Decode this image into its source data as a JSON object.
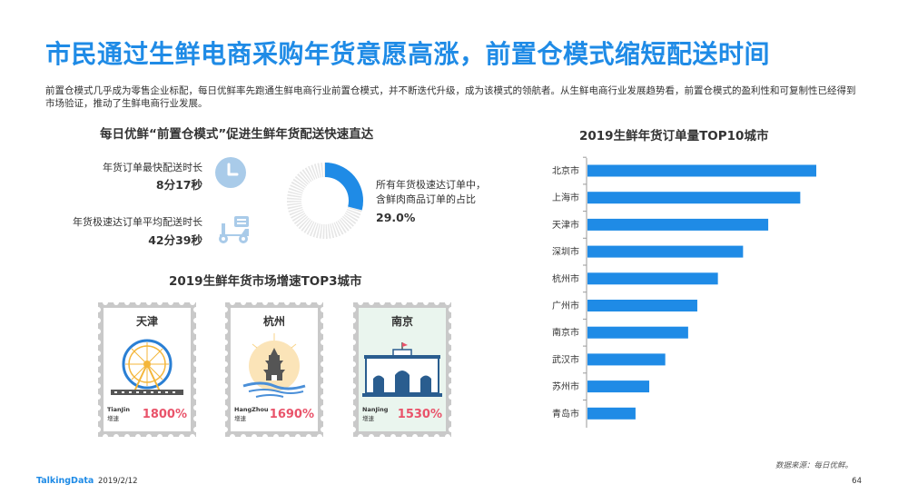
{
  "header": {
    "title": "市民通过生鲜电商采购年货意愿高涨，前置仓模式缩短配送时间",
    "intro": "前置仓模式几乎成为零售企业标配，每日优鲜率先跑通生鲜电商行业前置仓模式，并不断迭代升级，成为该模式的领航者。从生鲜电商行业发展趋势看，前置仓模式的盈利性和可复制性已经得到市场验证，推动了生鲜电商行业发展。"
  },
  "delivery": {
    "title": "每日优鲜“前置仓模式”促进生鲜年货配送快速直达",
    "fastest_label": "年货订单最快配送时长",
    "fastest_value": "8分17秒",
    "average_label": "年货极速达订单平均配送时长",
    "average_value": "42分39秒",
    "icons": [
      "clock-icon",
      "scooter-icon"
    ],
    "donut": {
      "line1": "所有年货极速达订单中，",
      "line2": "含鲜肉商品订单的占比",
      "value_label": "29.0%",
      "value": 29.0,
      "color": "#1f8be6"
    }
  },
  "growth": {
    "title": "2019生鲜年货市场增速TOP3城市",
    "cities": [
      {
        "name": "天津",
        "en": "TianJin",
        "growth_label": "增速",
        "value": "1800%",
        "icon": "ferris-wheel-icon"
      },
      {
        "name": "杭州",
        "en": "HangZhou",
        "growth_label": "增速",
        "value": "1690%",
        "icon": "pagoda-icon"
      },
      {
        "name": "南京",
        "en": "NanJing",
        "growth_label": "增速",
        "value": "1530%",
        "icon": "gate-building-icon"
      }
    ]
  },
  "chart_data": {
    "type": "bar",
    "orientation": "horizontal",
    "title": "2019生鲜年货订单量TOP10城市",
    "categories": [
      "北京市",
      "上海市",
      "天津市",
      "深圳市",
      "杭州市",
      "广州市",
      "南京市",
      "武汉市",
      "苏州市",
      "青岛市"
    ],
    "values": [
      100,
      93,
      79,
      68,
      57,
      48,
      44,
      34,
      27,
      21
    ],
    "xlabel": "",
    "ylabel": "",
    "grid": false,
    "color": "#1f8be6"
  },
  "footer": {
    "logo": "TalkingData",
    "date": "2019/2/12",
    "source": "数据来源：每日优鲜。",
    "page": "64"
  }
}
